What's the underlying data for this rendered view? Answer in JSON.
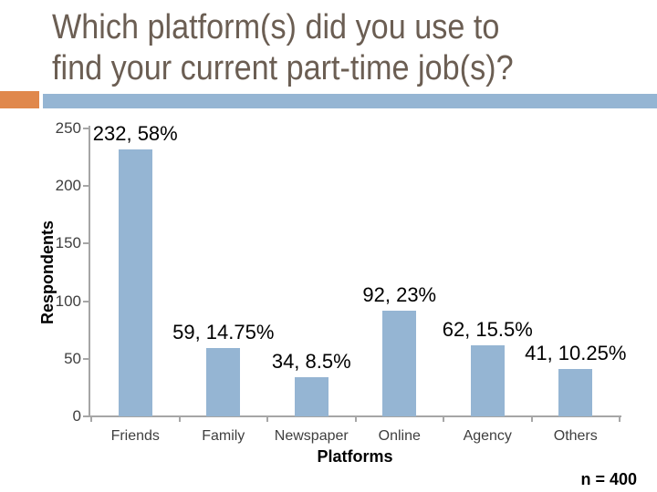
{
  "slide": {
    "title_lines": [
      "Which platform(s) did you use to",
      "find your current part-time job(s)?"
    ],
    "note": "n = 400"
  },
  "colors": {
    "title_text": "#6B5E53",
    "accent_orange": "#E0884C",
    "accent_band_blue": "#95B5D3",
    "bar_fill": "#95B5D3",
    "axis_gray": "#A6A6A6",
    "tick_text": "#3F3F3F",
    "label_text": "#000000"
  },
  "chart_data": {
    "type": "bar",
    "title": "Which platform(s) did you use to find your current part-time job(s)?",
    "xlabel": "Platforms",
    "ylabel": "Respondents",
    "categories": [
      "Friends",
      "Family",
      "Newspaper",
      "Online",
      "Agency",
      "Others"
    ],
    "values": [
      232,
      59,
      34,
      92,
      62,
      41
    ],
    "point_labels": [
      "232, 58%",
      "59, 14.75%",
      "34, 8.5%",
      "92, 23%",
      "62, 15.5%",
      "41, 10.25%"
    ],
    "yticks": [
      0,
      50,
      100,
      150,
      200,
      250
    ],
    "ylim": [
      0,
      250
    ],
    "grid": false,
    "legend": false,
    "sample_note": "n = 400"
  }
}
